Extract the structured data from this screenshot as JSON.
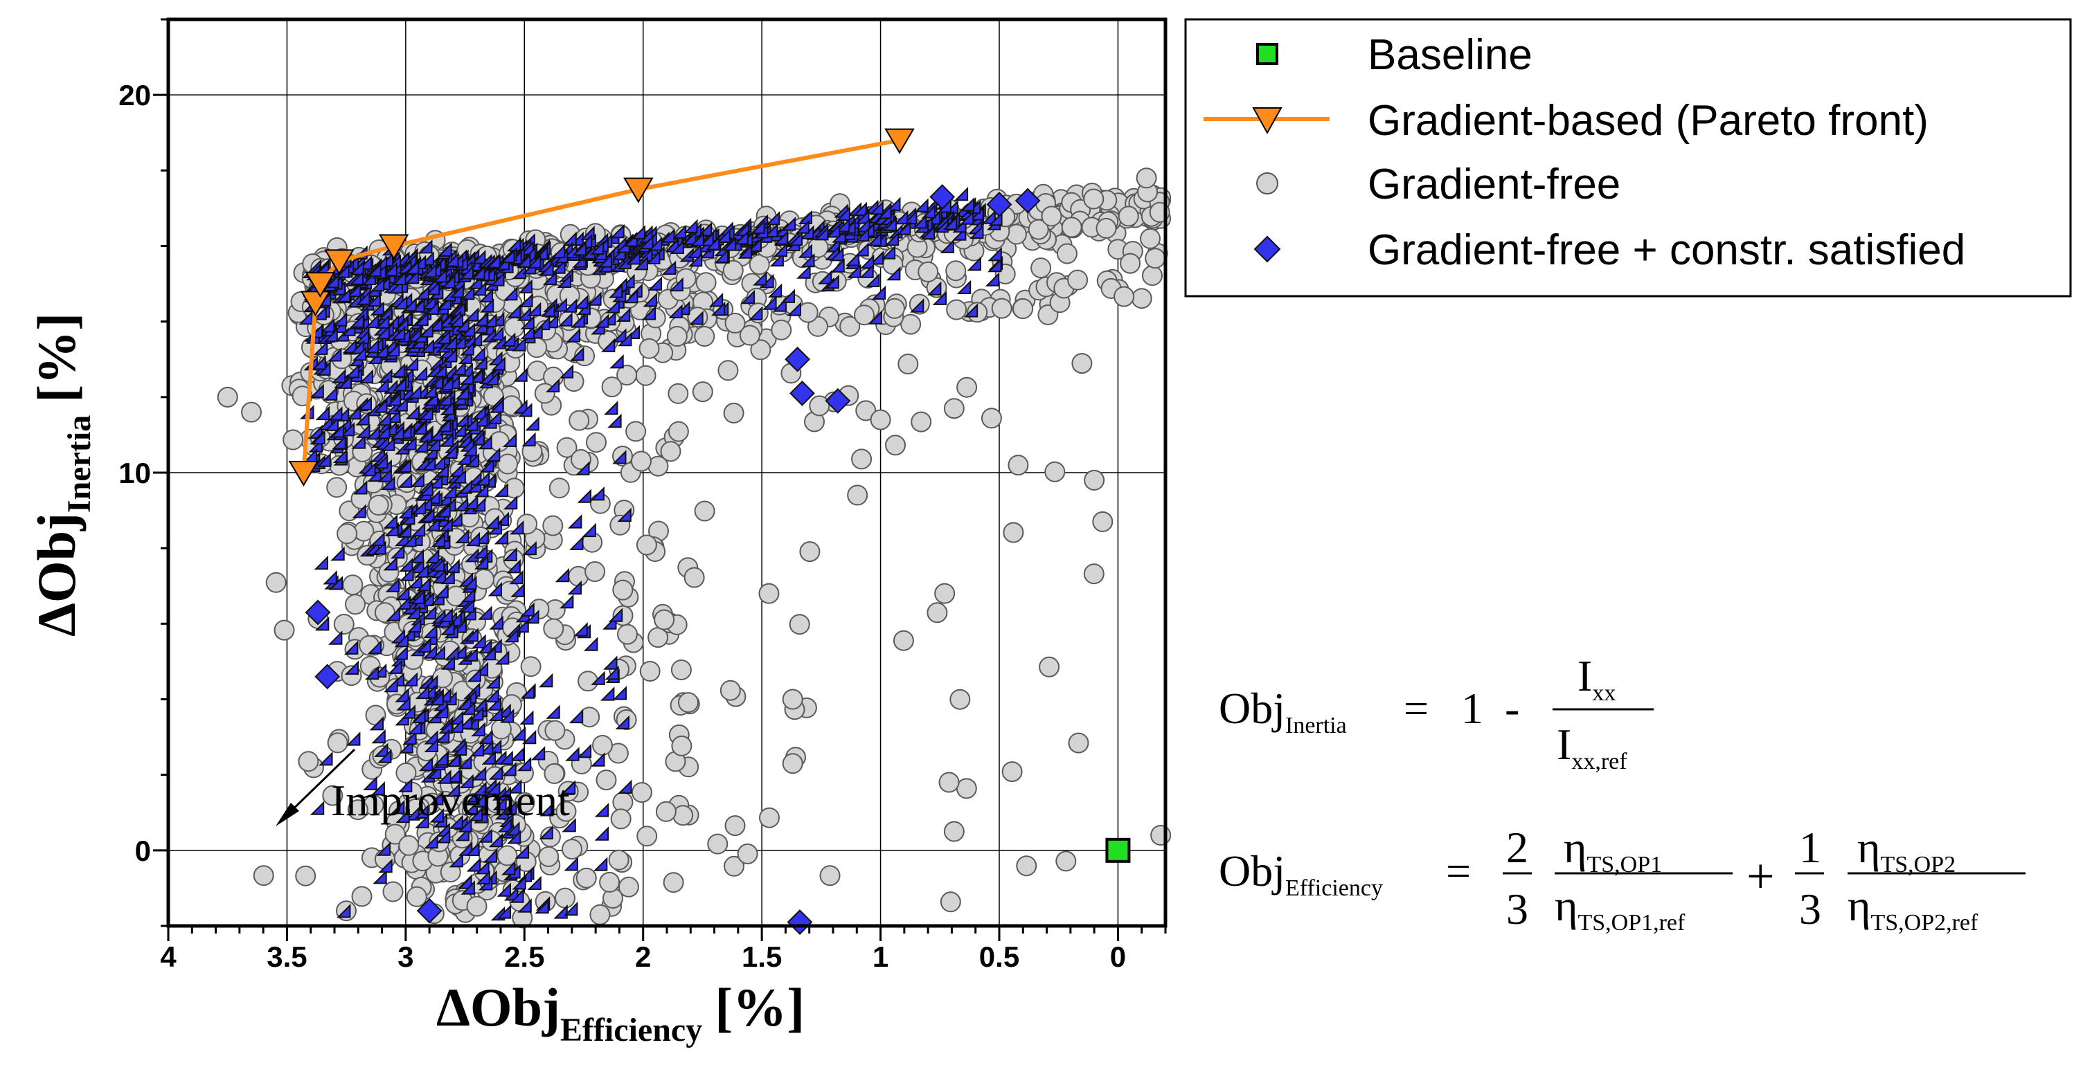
{
  "chart_data": {
    "type": "scatter",
    "title": "",
    "xlabel": {
      "main": "ΔObj",
      "sub": "Efficiency",
      "unit": "[%]"
    },
    "ylabel": {
      "main": "ΔObj",
      "sub": "Inertia",
      "unit": "[%]"
    },
    "xlim": [
      4,
      -0.2
    ],
    "ylim": [
      22,
      -2
    ],
    "x_reversed": true,
    "y_reversed": true,
    "xticks": [
      4,
      3.5,
      3,
      2.5,
      2,
      1.5,
      1,
      0.5,
      0
    ],
    "xtick_labels": [
      "4",
      "3.5",
      "3",
      "2.5",
      "2",
      "1.5",
      "1",
      "0.5",
      "0"
    ],
    "yticks": [
      0,
      10,
      20
    ],
    "ytick_labels": [
      "0",
      "10",
      "20"
    ],
    "grid": true,
    "legend": {
      "placement": "top-right, outside plot",
      "entries": [
        {
          "name": "Baseline",
          "marker": "square",
          "color": "#22dd22"
        },
        {
          "name": "Gradient-based (Pareto front)",
          "marker": "triangle-down-line",
          "color": "#ff8c1a"
        },
        {
          "name": "Gradient-free",
          "marker": "circle",
          "color": "#d4d4d4"
        },
        {
          "name": "Gradient-free + constr. satisfied",
          "marker": "diamond",
          "color": "#3333ee"
        }
      ]
    },
    "series": [
      {
        "name": "Baseline",
        "points": [
          [
            0,
            0
          ]
        ]
      },
      {
        "name": "Gradient-based (Pareto front)",
        "points": [
          [
            3.43,
            10.0
          ],
          [
            3.38,
            14.5
          ],
          [
            3.36,
            15.0
          ],
          [
            3.28,
            15.6
          ],
          [
            3.05,
            16.0
          ],
          [
            2.02,
            17.5
          ],
          [
            0.92,
            18.8
          ]
        ]
      },
      {
        "name": "Gradient-free",
        "summary": "~2500 sampled designs forming a dense L-shaped cloud: a vertical band at x≈3.3–2.5 spanning y≈-2 to 16 and a horizontal band at y≈15–17.5 spanning x≈3.5 to -0.2; sparse outliers up to x≈3.8 and near y≈0.5 at x≈-0.15",
        "sample_outliers": [
          [
            0.69,
            0.5
          ],
          [
            -0.18,
            0.4
          ],
          [
            0.1,
            9.8
          ],
          [
            0.42,
            10.2
          ],
          [
            0.73,
            6.8
          ],
          [
            1.47,
            6.8
          ],
          [
            1.37,
            2.3
          ],
          [
            1.37,
            4.0
          ],
          [
            1.0,
            11.4
          ],
          [
            0.69,
            11.7
          ],
          [
            0.17,
            15.1
          ],
          [
            3.75,
            12.0
          ],
          [
            3.65,
            11.6
          ],
          [
            -0.12,
            17.8
          ]
        ]
      },
      {
        "name": "Gradient-free + constr. satisfied",
        "summary": "~1500 feasible designs concentrated along the same L-shaped region, densest at x≈3.4–2.5 and along y≈14–17",
        "sample_outliers": [
          [
            2.9,
            -1.6
          ],
          [
            1.34,
            -1.9
          ],
          [
            3.33,
            4.6
          ],
          [
            3.37,
            6.3
          ],
          [
            1.33,
            12.1
          ],
          [
            1.18,
            11.9
          ],
          [
            1.35,
            13.0
          ],
          [
            0.38,
            17.2
          ],
          [
            0.74,
            17.3
          ],
          [
            0.5,
            17.1
          ]
        ]
      }
    ],
    "annotations": [
      {
        "text": "Improvement",
        "type": "arrow-label",
        "direction": "toward lower-left (larger ΔObj)"
      }
    ]
  },
  "equations": {
    "inertia": {
      "lhs_main": "Obj",
      "lhs_sub": "Inertia",
      "eq": "=",
      "one": "1",
      "minus": "-",
      "num_main": "I",
      "num_sub": "xx",
      "den_main": "I",
      "den_sub": "xx,ref"
    },
    "efficiency": {
      "lhs_main": "Obj",
      "lhs_sub": "Efficiency",
      "eq": "=",
      "c1_num": "2",
      "c1_den": "3",
      "f1_num_main": "η",
      "f1_num_sub": "TS,OP1",
      "f1_den_main": "η",
      "f1_den_sub": "TS,OP1,ref",
      "plus": "+",
      "c2_num": "1",
      "c2_den": "3",
      "f2_num_main": "η",
      "f2_num_sub": "TS,OP2",
      "f2_den_main": "η",
      "f2_den_sub": "TS,OP2,ref"
    }
  },
  "colors": {
    "baseline": "#22dd22",
    "pareto": "#ff8c1a",
    "gradient_free": "#d4d4d4",
    "feasible": "#3333ee"
  }
}
